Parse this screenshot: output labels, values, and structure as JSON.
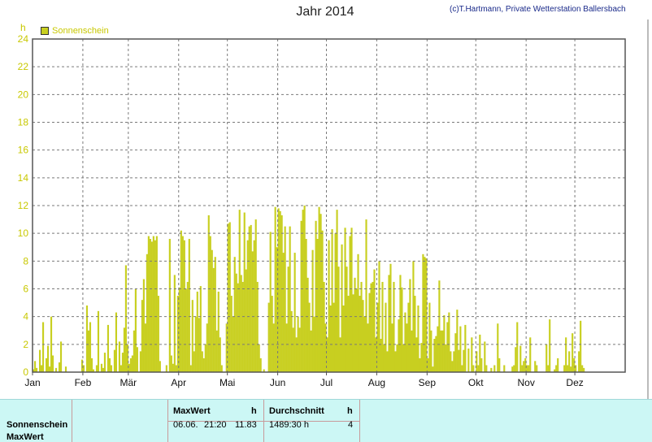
{
  "chart_data": {
    "type": "bar",
    "title": "Jahr 2014",
    "credit": "(c)T.Hartmann, Private Wetterstation Ballersbach",
    "ylabel": "h",
    "ylim": [
      0,
      24
    ],
    "yticks": [
      0,
      2,
      4,
      6,
      8,
      10,
      12,
      14,
      16,
      18,
      20,
      22,
      24
    ],
    "months": [
      "Jan",
      "Feb",
      "Mär",
      "Apr",
      "Mai",
      "Jun",
      "Jul",
      "Aug",
      "Sep",
      "Okt",
      "Nov",
      "Dez"
    ],
    "grid": true,
    "legend_position": "top-left",
    "series": [
      {
        "name": "Sonnenschein",
        "color": "#c8cf20",
        "values": [
          0.2,
          0.8,
          0.3,
          0.0,
          1.6,
          0.5,
          3.6,
          0.0,
          1.0,
          1.9,
          0.4,
          4.0,
          1.2,
          0.0,
          0.3,
          0.0,
          0.7,
          2.2,
          0.0,
          0.0,
          0.4,
          0.0,
          0.0,
          0.0,
          0.0,
          0.0,
          0.0,
          0.0,
          0.0,
          0.0,
          0.9,
          0.5,
          0.0,
          4.8,
          3.0,
          3.6,
          1.0,
          0.2,
          0.0,
          0.5,
          4.4,
          0.0,
          0.6,
          0.3,
          1.4,
          0.0,
          3.4,
          1.0,
          0.5,
          0.0,
          1.6,
          4.3,
          0.0,
          2.2,
          0.5,
          1.4,
          3.2,
          7.7,
          2.0,
          0.6,
          1.0,
          1.2,
          3.0,
          6.0,
          1.8,
          0.0,
          1.5,
          5.2,
          6.7,
          3.5,
          8.5,
          9.8,
          9.6,
          9.4,
          9.8,
          9.5,
          9.8,
          5.5,
          0.8,
          0.0,
          0.0,
          0.0,
          0.5,
          0.0,
          9.6,
          1.2,
          0.6,
          7.0,
          0.5,
          5.5,
          6.1,
          10.2,
          9.8,
          9.5,
          6.0,
          6.5,
          9.6,
          0.5,
          5.2,
          1.5,
          4.0,
          5.8,
          3.9,
          6.2,
          1.5,
          1.0,
          2.0,
          3.5,
          11.3,
          9.8,
          8.8,
          7.5,
          8.3,
          3.0,
          5.8,
          2.5,
          0.5,
          0.0,
          0.0,
          3.5,
          10.7,
          10.8,
          5.5,
          4.0,
          8.3,
          7.1,
          6.4,
          11.7,
          7.0,
          6.5,
          11.5,
          7.4,
          9.5,
          10.5,
          10.6,
          8.7,
          9.5,
          11.0,
          6.5,
          2.0,
          1.0,
          0.0,
          0.2,
          0.0,
          0.0,
          5.0,
          10.1,
          5.5,
          3.5,
          11.9,
          9.0,
          11.8,
          11.6,
          11.3,
          8.6,
          10.5,
          3.5,
          7.6,
          10.5,
          4.4,
          3.2,
          8.6,
          2.5,
          4.0,
          3.2,
          10.9,
          11.7,
          12.0,
          9.6,
          6.8,
          5.0,
          3.0,
          8.8,
          4.0,
          10.9,
          9.6,
          11.9,
          11.4,
          10.2,
          6.5,
          3.5,
          2.5,
          9.5,
          4.8,
          10.3,
          5.0,
          10.0,
          11.7,
          7.6,
          2.5,
          9.2,
          4.8,
          10.4,
          7.6,
          5.5,
          9.8,
          10.4,
          5.6,
          6.8,
          6.0,
          8.5,
          5.5,
          6.5,
          5.2,
          4.0,
          11.0,
          3.5,
          5.7,
          6.4,
          6.5,
          7.4,
          2.5,
          5.0,
          8.0,
          2.4,
          6.5,
          2.0,
          5.0,
          1.5,
          7.0,
          7.8,
          3.5,
          6.5,
          1.5,
          2.0,
          3.8,
          7.0,
          6.1,
          2.0,
          4.3,
          3.5,
          5.0,
          6.7,
          3.0,
          8.0,
          5.5,
          2.5,
          4.8,
          1.0,
          2.1,
          8.5,
          8.3,
          8.2,
          1.0,
          5.0,
          3.0,
          0.4,
          2.4,
          2.6,
          3.3,
          6.6,
          3.0,
          3.0,
          4.1,
          2.0,
          3.6,
          4.3,
          1.5,
          0.8,
          1.5,
          2.8,
          4.5,
          1.6,
          3.3,
          0.5,
          1.6,
          3.4,
          0.0,
          1.7,
          0.0,
          2.5,
          0.5,
          0.0,
          1.5,
          0.5,
          2.7,
          1.0,
          0.0,
          2.2,
          0.5,
          0.0,
          0.0,
          0.3,
          0.0,
          0.5,
          0.0,
          3.5,
          1.0,
          0.0,
          0.0,
          0.5,
          0.0,
          0.0,
          0.0,
          0.0,
          0.4,
          0.5,
          1.8,
          3.6,
          0.0,
          1.9,
          0.5,
          0.8,
          1.0,
          0.5,
          0.5,
          2.5,
          0.0,
          0.0,
          0.8,
          0.5,
          0.0,
          0.0,
          0.0,
          0.0,
          0.0,
          2.0,
          0.5,
          3.8,
          0.0,
          0.0,
          0.2,
          0.5,
          1.0,
          0.0,
          0.0,
          0.0,
          0.5,
          2.5,
          0.5,
          1.5,
          0.4,
          2.8,
          1.0,
          0.5,
          0.0,
          1.5,
          3.7,
          0.5,
          0.3,
          0.0,
          0.0,
          0.0
        ]
      }
    ]
  },
  "summary": {
    "row_labels": [
      "Sonnenschein",
      "MaxWert"
    ],
    "max_header": "MaxWert",
    "max_unit": "h",
    "max_date": "06.06.",
    "max_time": "21:20",
    "max_value": "11.83",
    "avg_header": "Durchschnitt",
    "avg_unit": "h",
    "avg_value": "1489:30 h",
    "avg_count": "4"
  },
  "colors": {
    "bar": "#c8cf20",
    "axis_text": "#c8c800",
    "panel_bg": "#ccf7f5",
    "credit": "#1a2a8a"
  }
}
